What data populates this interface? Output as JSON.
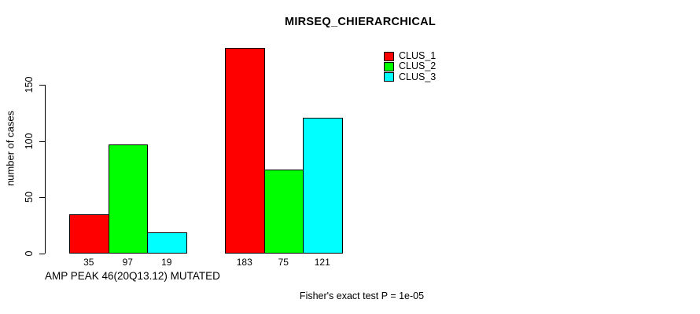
{
  "title": "MIRSEQ_CHIERARCHICAL",
  "y_axis": {
    "label": "number of cases",
    "tick_labels": [
      "0",
      "50",
      "100",
      "150"
    ]
  },
  "x_axis": {
    "label": "AMP PEAK 46(20Q13.12) MUTATED"
  },
  "footer": "Fisher's exact test P = 1e-05",
  "chart_data": {
    "type": "bar",
    "title": "MIRSEQ_CHIERARCHICAL",
    "xlabel": "AMP PEAK 46(20Q13.12) MUTATED",
    "ylabel": "number of cases",
    "ylim": [
      0,
      150
    ],
    "y_ticks": [
      0,
      50,
      100,
      150
    ],
    "grid": false,
    "legend_position": "top-right",
    "categories": [
      "",
      ""
    ],
    "series": [
      {
        "name": "CLUS_1",
        "color": "#FF0000",
        "values": [
          35,
          183
        ]
      },
      {
        "name": "CLUS_2",
        "color": "#00FF00",
        "values": [
          97,
          75
        ]
      },
      {
        "name": "CLUS_3",
        "color": "#00FFFF",
        "values": [
          19,
          121
        ]
      }
    ],
    "bar_value_labels_shown": true,
    "annotation": "Fisher's exact test P = 1e-05"
  }
}
